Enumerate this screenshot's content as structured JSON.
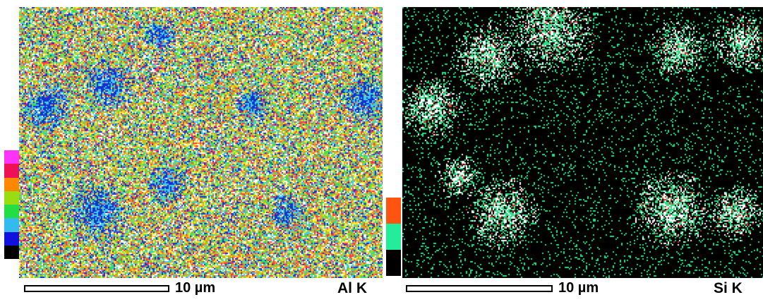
{
  "panels": [
    {
      "id": "al",
      "element_label": "Al K",
      "scale_label": "10 µm",
      "colorbar_colors": [
        "#ff33ff",
        "#ee1155",
        "#ff8800",
        "#99dd11",
        "#22dd44",
        "#33bbee",
        "#1111dd",
        "#000000"
      ],
      "map_palette": [
        "#ffffff",
        "#ff3355",
        "#ffee33",
        "#ff9911",
        "#99dd22",
        "#33dd55",
        "#44ccee",
        "#1133cc",
        "#ff44ff"
      ],
      "map_background": "#9acd6e"
    },
    {
      "id": "si",
      "element_label": "Si K",
      "scale_label": "10 µm",
      "colorbar_colors": [
        "#ff5511",
        "#22ee99",
        "#000000"
      ],
      "map_palette": [
        "#000000",
        "#33dd88",
        "#ffffff",
        "#cc3322"
      ],
      "map_background": "#000000"
    }
  ]
}
